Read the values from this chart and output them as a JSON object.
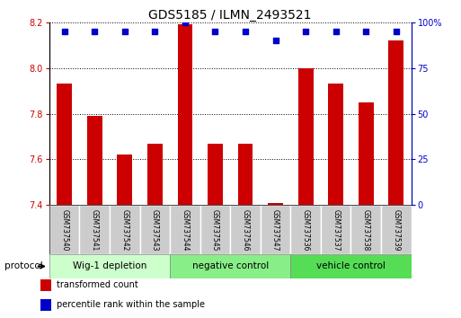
{
  "title": "GDS5185 / ILMN_2493521",
  "samples": [
    "GSM737540",
    "GSM737541",
    "GSM737542",
    "GSM737543",
    "GSM737544",
    "GSM737545",
    "GSM737546",
    "GSM737547",
    "GSM737536",
    "GSM737537",
    "GSM737538",
    "GSM737539"
  ],
  "transformed_counts": [
    7.93,
    7.79,
    7.62,
    7.67,
    8.19,
    7.67,
    7.67,
    7.41,
    8.0,
    7.93,
    7.85,
    8.12
  ],
  "percentile_ranks": [
    95,
    95,
    95,
    95,
    100,
    95,
    95,
    90,
    95,
    95,
    95,
    95
  ],
  "ylim_left": [
    7.4,
    8.2
  ],
  "ylim_right": [
    0,
    100
  ],
  "yticks_left": [
    7.4,
    7.6,
    7.8,
    8.0,
    8.2
  ],
  "yticks_right": [
    0,
    25,
    50,
    75,
    100
  ],
  "groups": [
    {
      "label": "Wig-1 depletion",
      "start": 0,
      "end": 4,
      "color": "#ccffcc"
    },
    {
      "label": "negative control",
      "start": 4,
      "end": 8,
      "color": "#88ee88"
    },
    {
      "label": "vehicle control",
      "start": 8,
      "end": 12,
      "color": "#55dd55"
    }
  ],
  "bar_color": "#cc0000",
  "dot_color": "#0000cc",
  "bar_width": 0.5,
  "dot_size": 20,
  "grid_color": "#000000",
  "bg_color": "#ffffff",
  "tick_area_color": "#cccccc",
  "legend_items": [
    {
      "color": "#cc0000",
      "label": "transformed count"
    },
    {
      "color": "#0000cc",
      "label": "percentile rank within the sample"
    }
  ],
  "protocol_label": "protocol",
  "title_fontsize": 10,
  "tick_fontsize": 7,
  "label_fontsize": 7.5,
  "group_fontsize": 7.5
}
